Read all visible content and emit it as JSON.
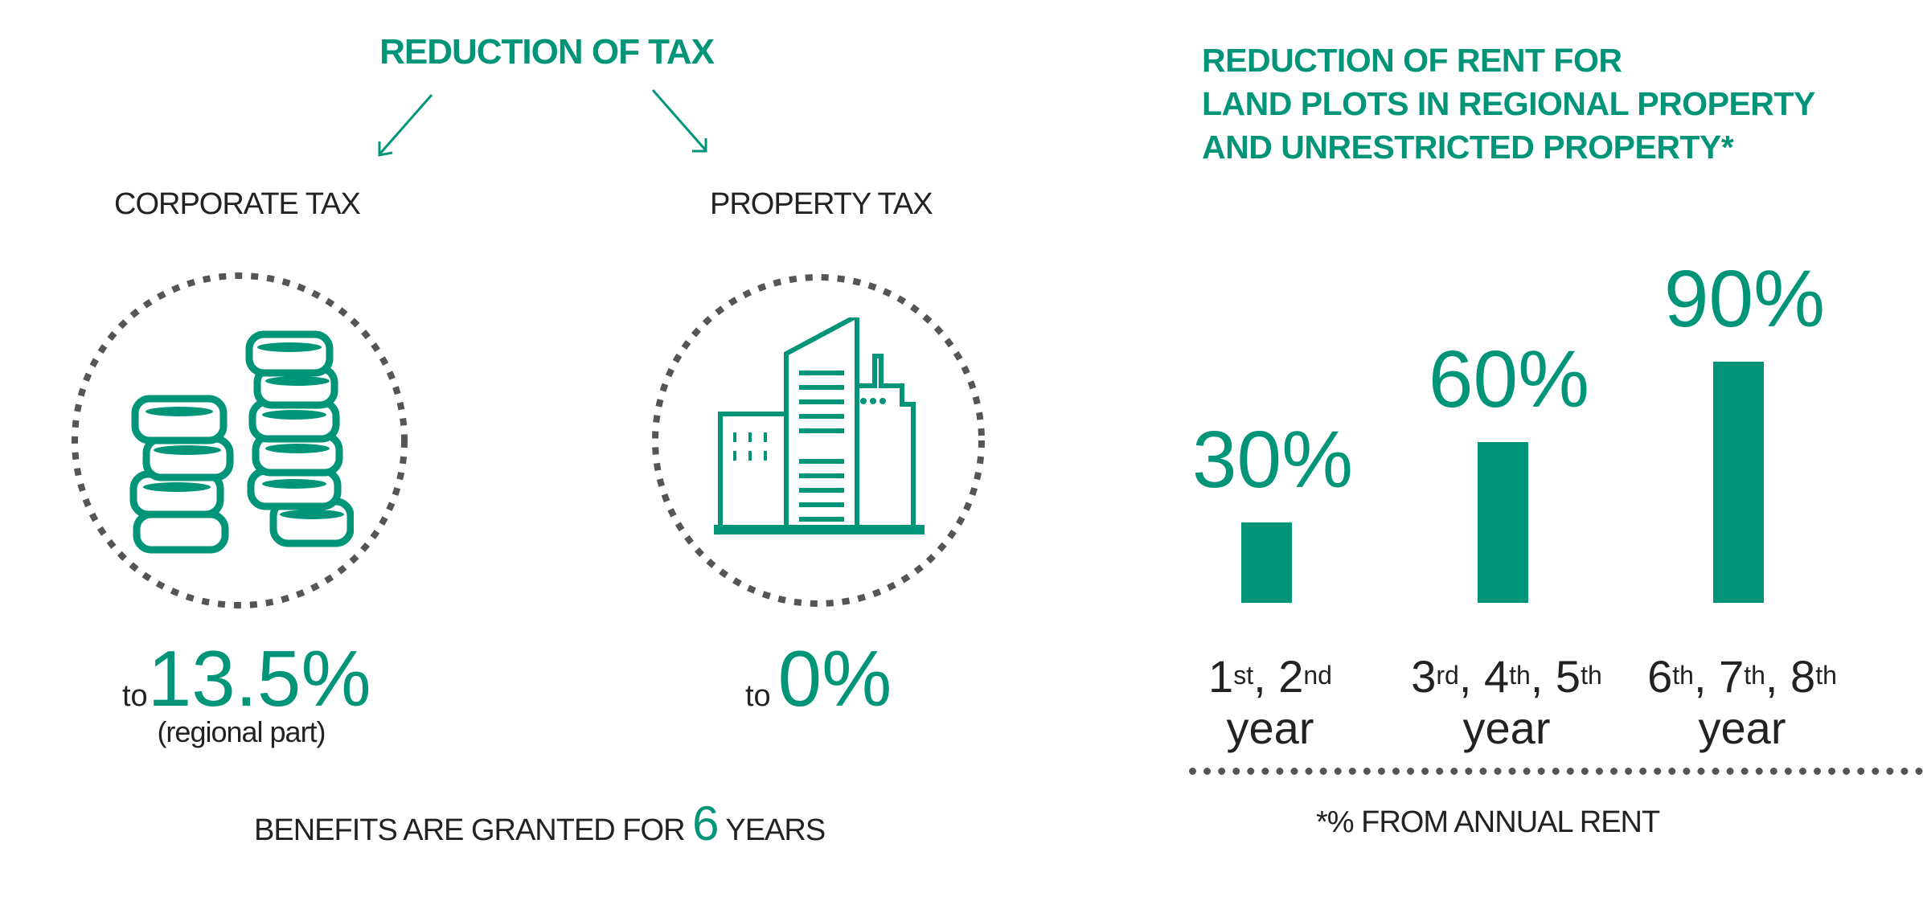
{
  "colors": {
    "accent": "#009479",
    "dots": "#555555",
    "text": "#222222"
  },
  "left": {
    "title": "REDUCTION OF TAX",
    "corporate": {
      "label": "CORPORATE TAX",
      "to": "to",
      "value": "13.5%",
      "note": "(regional part)",
      "icon": "coins-icon"
    },
    "property": {
      "label": "PROPERTY TAX",
      "to": "to",
      "value": "0%",
      "icon": "building-icon"
    },
    "benefits": {
      "prefix": "BENEFITS ARE GRANTED FOR",
      "number": "6",
      "suffix": "YEARS"
    }
  },
  "right": {
    "title_lines": [
      "REDUCTION OF RENT FOR",
      "LAND PLOTS IN REGIONAL PROPERTY",
      "AND UNRESTRICTED PROPERTY*"
    ],
    "footnote": "*% FROM ANNUAL RENT"
  },
  "chart_data": {
    "type": "bar",
    "categories": [
      "1st, 2nd year",
      "3rd, 4th, 5th year",
      "6th, 7th, 8th year"
    ],
    "values": [
      30,
      60,
      90
    ],
    "data_labels": [
      "30%",
      "60%",
      "90%"
    ],
    "category_parts": [
      [
        {
          "n": "1",
          "sup": "st"
        },
        {
          "n": "2",
          "sup": "nd"
        }
      ],
      [
        {
          "n": "3",
          "sup": "rd"
        },
        {
          "n": "4",
          "sup": "th"
        },
        {
          "n": "5",
          "sup": "th"
        }
      ],
      [
        {
          "n": "6",
          "sup": "th"
        },
        {
          "n": "7",
          "sup": "th"
        },
        {
          "n": "8",
          "sup": "th"
        }
      ]
    ],
    "category_word": "year",
    "ylim": [
      0,
      100
    ],
    "grid": false,
    "color": "#009479"
  }
}
